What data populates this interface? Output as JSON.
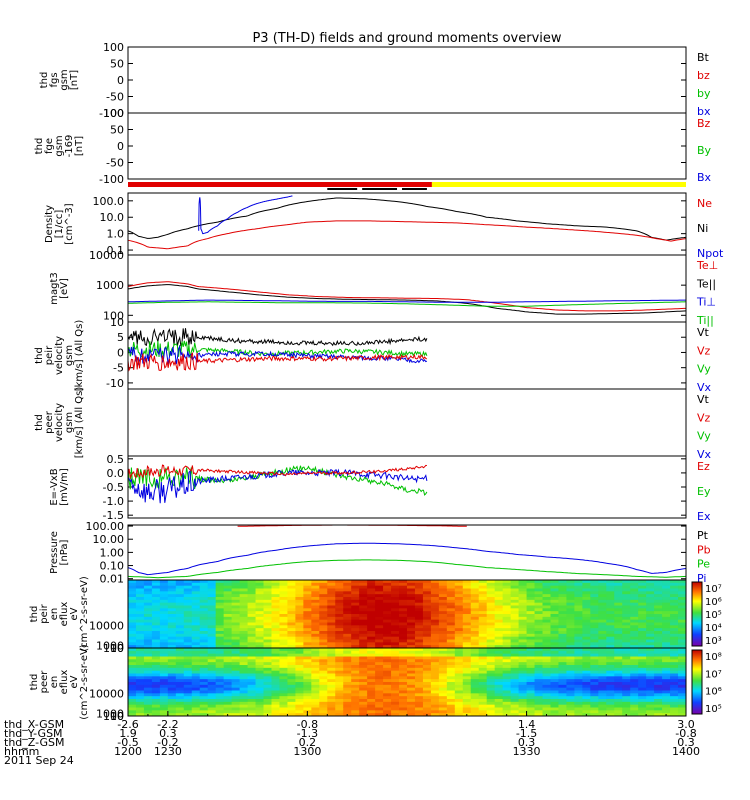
{
  "title": "P3 (TH-D) fields and ground moments overview",
  "chart_data": [
    {
      "type": "line",
      "id": "p1",
      "ylabels": [
        "thd",
        "fgs",
        "gsm",
        "[nT]"
      ],
      "ylim": [
        -100,
        100
      ],
      "yticks": [
        "100",
        "50",
        "0",
        "-50",
        "-100"
      ],
      "legend": [
        {
          "label": "Bt",
          "color": "#000000"
        },
        {
          "label": "bz",
          "color": "#e00000"
        },
        {
          "label": "by",
          "color": "#00c000"
        },
        {
          "label": "bx",
          "color": "#0000e0"
        }
      ],
      "series": []
    },
    {
      "type": "line",
      "id": "p2",
      "ylabels": [
        "thd",
        "fge",
        "gsm",
        "-169",
        "[nT]"
      ],
      "ylim": [
        -100,
        100
      ],
      "yticks": [
        "100",
        "50",
        "0",
        "-50",
        "-100"
      ],
      "legend": [
        {
          "label": "Bz",
          "color": "#e00000"
        },
        {
          "label": "By",
          "color": "#00c000"
        },
        {
          "label": "Bx",
          "color": "#0000e0"
        }
      ],
      "series": []
    },
    {
      "type": "bar",
      "id": "mode",
      "segments": [
        {
          "x0": -2.6,
          "x1": 0.45,
          "color": "#e00000"
        },
        {
          "x0": 0.45,
          "x1": 3.0,
          "color": "#ffff00"
        }
      ],
      "ticks": [
        {
          "x0": -0.6,
          "x1": -0.3
        },
        {
          "x0": -0.25,
          "x1": 0.1
        },
        {
          "x0": 0.15,
          "x1": 0.4
        }
      ]
    },
    {
      "type": "line",
      "id": "p3",
      "scale": "log",
      "ylabels": [
        "Density",
        "[1/cc]",
        "[cm^-3]"
      ],
      "ylim": [
        0.05,
        300
      ],
      "yticks": [
        "100.0",
        "10.0",
        "1.0",
        "0.1"
      ],
      "yticksv": [
        100,
        10,
        1,
        0.1
      ],
      "legend": [
        {
          "label": "Ne",
          "color": "#e00000"
        },
        {
          "label": "Ni",
          "color": "#000000"
        },
        {
          "label": "Npot",
          "color": "#0000e0"
        }
      ],
      "series": [
        {
          "name": "Ni",
          "color": "#000000",
          "x": [
            -2.6,
            -2.5,
            -2.4,
            -2.3,
            -2.2,
            -2.0,
            -1.7,
            -1.4,
            -1.1,
            -0.8,
            -0.5,
            -0.2,
            0.1,
            0.4,
            0.7,
            1.0,
            1.3,
            1.6,
            1.9,
            2.2,
            2.5,
            2.65,
            2.8,
            3.0
          ],
          "y": [
            1.5,
            0.7,
            0.5,
            0.6,
            0.9,
            2,
            5,
            12,
            35,
            90,
            150,
            130,
            90,
            45,
            22,
            10,
            6,
            4,
            3,
            2.5,
            1.5,
            0.6,
            0.4,
            0.6
          ]
        },
        {
          "name": "Ne",
          "color": "#e00000",
          "x": [
            -2.6,
            -2.4,
            -2.2,
            -2.0,
            -1.9,
            -1.8,
            -1.6,
            -1.3,
            -1.0,
            -0.8,
            -0.5,
            -0.2,
            0.1,
            0.4,
            0.7,
            1.0,
            1.4,
            1.8,
            2.2,
            2.5,
            2.7,
            2.85,
            3.0
          ],
          "y": [
            0.4,
            0.15,
            0.12,
            0.18,
            0.35,
            0.5,
            1.0,
            2.0,
            3.5,
            5,
            6,
            6,
            5.5,
            5,
            4.5,
            3.5,
            2.5,
            1.8,
            1.2,
            0.8,
            0.5,
            0.35,
            0.5
          ]
        },
        {
          "name": "Npot",
          "color": "#0000e0",
          "x": [
            -1.89,
            -1.88,
            -1.87,
            -1.85,
            -1.8,
            -1.7,
            -1.6,
            -1.5,
            -1.4,
            -1.3,
            -1.2,
            -1.1,
            -1.0,
            -0.95
          ],
          "y": [
            1.5,
            180,
            2,
            1.0,
            1.2,
            3,
            8,
            20,
            40,
            70,
            100,
            130,
            170,
            200
          ]
        }
      ]
    },
    {
      "type": "line",
      "id": "p4",
      "scale": "log",
      "ylabels": [
        "magt3",
        "[eV]"
      ],
      "ylim": [
        60,
        10000
      ],
      "yticks": [
        "10000",
        "1000",
        "100"
      ],
      "yticksv": [
        10000,
        1000,
        100
      ],
      "legend": [
        {
          "label": "Te⊥",
          "color": "#e00000"
        },
        {
          "label": "Te||",
          "color": "#000000"
        },
        {
          "label": "Ti⊥",
          "color": "#0000e0"
        },
        {
          "label": "Ti||",
          "color": "#00c000"
        }
      ],
      "series": [
        {
          "name": "Te⊥",
          "color": "#e00000",
          "x": [
            -2.6,
            -2.4,
            -2.2,
            -2.0,
            -1.9,
            -1.6,
            -1.3,
            -1.0,
            -0.7,
            -0.4,
            -0.1,
            0.2,
            0.5,
            0.8,
            1.1,
            1.4,
            1.7,
            2.0,
            2.3,
            2.6,
            3.0
          ],
          "y": [
            900,
            1200,
            1300,
            1100,
            900,
            750,
            600,
            480,
            420,
            390,
            380,
            370,
            360,
            330,
            250,
            180,
            150,
            140,
            140,
            150,
            170
          ]
        },
        {
          "name": "Te||",
          "color": "#000000",
          "x": [
            -2.6,
            -2.4,
            -2.2,
            -2.0,
            -1.9,
            -1.6,
            -1.3,
            -1.0,
            -0.7,
            -0.4,
            -0.1,
            0.2,
            0.5,
            0.8,
            1.1,
            1.4,
            1.7,
            2.0,
            2.3,
            2.6,
            3.0
          ],
          "y": [
            750,
            950,
            1050,
            900,
            750,
            600,
            480,
            400,
            360,
            340,
            330,
            320,
            300,
            250,
            170,
            130,
            110,
            110,
            115,
            120,
            140
          ]
        },
        {
          "name": "Ti⊥",
          "color": "#0000e0",
          "x": [
            -2.6,
            -2.2,
            -1.8,
            -1.4,
            -1.0,
            -0.6,
            -0.2,
            0.2,
            0.6,
            1.0,
            1.4,
            1.8,
            2.2,
            2.6,
            3.0
          ],
          "y": [
            280,
            300,
            320,
            310,
            300,
            290,
            290,
            280,
            270,
            270,
            280,
            290,
            300,
            310,
            320
          ]
        },
        {
          "name": "Ti||",
          "color": "#00c000",
          "x": [
            -2.6,
            -2.2,
            -1.8,
            -1.4,
            -1.0,
            -0.6,
            -0.2,
            0.2,
            0.6,
            1.0,
            1.4,
            1.8,
            2.2,
            2.6,
            3.0
          ],
          "y": [
            250,
            270,
            280,
            270,
            260,
            260,
            255,
            240,
            220,
            200,
            200,
            220,
            240,
            260,
            280
          ]
        }
      ]
    },
    {
      "type": "line",
      "id": "p5",
      "ylabels": [
        "thd",
        "peir",
        "velocity",
        "gsm",
        "[km/s] (All Qs)"
      ],
      "ylim": [
        -12,
        10
      ],
      "yticks": [
        "10",
        "5",
        "0",
        "-5",
        "-10"
      ],
      "yticksv": [
        10,
        5,
        0,
        -5,
        -10
      ],
      "legend": [
        {
          "label": "Vt",
          "color": "#000000"
        },
        {
          "label": "Vz",
          "color": "#e00000"
        },
        {
          "label": "Vy",
          "color": "#00c000"
        },
        {
          "label": "Vx",
          "color": "#0000e0"
        }
      ],
      "series": [
        {
          "name": "Vt",
          "color": "#000000",
          "noise": 3,
          "nend": -1.9,
          "x": [
            -2.6,
            -1.9,
            -1.6,
            -1.2,
            -0.8,
            -0.4,
            0.0,
            0.2,
            0.4
          ],
          "y": [
            5,
            5,
            4,
            3.5,
            3,
            3,
            3.5,
            4,
            4.5
          ]
        },
        {
          "name": "Vy",
          "color": "#00c000",
          "noise": 3,
          "nend": -1.9,
          "x": [
            -2.6,
            -1.9,
            -1.6,
            -1.2,
            -0.8,
            -0.4,
            0.0,
            0.2,
            0.4
          ],
          "y": [
            1,
            1,
            0.5,
            -0.5,
            0,
            0.5,
            0,
            -0.5,
            -0.5
          ]
        },
        {
          "name": "Vx",
          "color": "#0000e0",
          "noise": 3,
          "nend": -1.9,
          "x": [
            -2.6,
            -1.9,
            -1.6,
            -1.2,
            -0.8,
            -0.4,
            0.0,
            0.2,
            0.4
          ],
          "y": [
            -1,
            -1,
            -0.5,
            -0.5,
            -1,
            -1.5,
            -2,
            -2.5,
            -3
          ]
        },
        {
          "name": "Vz",
          "color": "#e00000",
          "noise": 3,
          "nend": -1.9,
          "x": [
            -2.6,
            -1.9,
            -1.6,
            -1.2,
            -0.8,
            -0.4,
            0.0,
            0.2,
            0.4
          ],
          "y": [
            -3,
            -3,
            -2.5,
            -2,
            -2,
            -2,
            -1.5,
            -1.5,
            -1.5
          ]
        }
      ]
    },
    {
      "type": "line",
      "id": "p6",
      "ylabels": [
        "thd",
        "peer",
        "velocity",
        "gsm",
        "[km/s] (All Qs)"
      ],
      "ylim": [
        -10,
        10
      ],
      "yticks": [],
      "legend": [
        {
          "label": "Vt",
          "color": "#000000"
        },
        {
          "label": "Vz",
          "color": "#e00000"
        },
        {
          "label": "Vy",
          "color": "#00c000"
        },
        {
          "label": "Vx",
          "color": "#0000e0"
        }
      ],
      "series": []
    },
    {
      "type": "line",
      "id": "p7",
      "ylabels": [
        "E=-VxB",
        "[mV/m]"
      ],
      "ylim": [
        -1.6,
        0.6
      ],
      "yticks": [
        "0.5",
        "0.0",
        "-0.5",
        "-1.0",
        "-1.5"
      ],
      "yticksv": [
        0.5,
        0,
        -0.5,
        -1.0,
        -1.5
      ],
      "legend": [
        {
          "label": "Ez",
          "color": "#e00000"
        },
        {
          "label": "Ey",
          "color": "#00c000"
        },
        {
          "label": "Ex",
          "color": "#0000e0"
        }
      ],
      "series": [
        {
          "name": "Ey",
          "color": "#00c000",
          "noise": 0.4,
          "nend": -1.9,
          "x": [
            -2.6,
            -1.9,
            -1.6,
            -1.3,
            -1.0,
            -0.8,
            -0.6,
            -0.3,
            0.0,
            0.2,
            0.4
          ],
          "y": [
            -0.2,
            -0.2,
            -0.3,
            -0.1,
            0.1,
            0.2,
            0.0,
            -0.2,
            -0.4,
            -0.6,
            -0.7
          ]
        },
        {
          "name": "Ex",
          "color": "#0000e0",
          "noise": 0.45,
          "nend": -1.9,
          "x": [
            -2.6,
            -2.4,
            -2.2,
            -1.9,
            -1.6,
            -1.3,
            -1.0,
            -0.7,
            -0.4,
            0.0,
            0.2,
            0.4
          ],
          "y": [
            -0.3,
            -0.7,
            -0.6,
            -0.3,
            -0.2,
            -0.1,
            0.0,
            0.0,
            0.0,
            -0.1,
            -0.2,
            -0.2
          ]
        },
        {
          "name": "Ez",
          "color": "#e00000",
          "noise": 0.2,
          "nend": -1.9,
          "x": [
            -2.6,
            -2.2,
            -1.9,
            -1.6,
            -1.3,
            -1.0,
            -0.7,
            -0.4,
            -0.1,
            0.2,
            0.4
          ],
          "y": [
            0.0,
            0.1,
            0.1,
            0.05,
            0.0,
            -0.05,
            0.0,
            0.0,
            0.05,
            0.15,
            0.25
          ]
        }
      ]
    },
    {
      "type": "line",
      "id": "p8",
      "scale": "log",
      "ylabels": [
        "Pressure",
        "[nPa]"
      ],
      "ylim": [
        0.008,
        120
      ],
      "yticks": [
        "100.00",
        "10.00",
        "1.00",
        "0.10",
        "0.01"
      ],
      "yticksv": [
        100,
        10,
        1,
        0.1,
        0.01
      ],
      "legend": [
        {
          "label": "Pt",
          "color": "#000000"
        },
        {
          "label": "Pb",
          "color": "#e00000"
        },
        {
          "label": "Pe",
          "color": "#00c000"
        },
        {
          "label": "Pi",
          "color": "#0000e0"
        }
      ],
      "series": [
        {
          "name": "Pb",
          "color": "#e00000",
          "x": [
            -1.5,
            -1.0,
            -0.5,
            0.0,
            0.5,
            0.8
          ],
          "y": [
            95,
            110,
            120,
            115,
            105,
            95
          ]
        },
        {
          "name": "Pi",
          "color": "#0000e0",
          "x": [
            -2.6,
            -2.5,
            -2.4,
            -2.2,
            -2.0,
            -1.7,
            -1.4,
            -1.1,
            -0.8,
            -0.5,
            -0.2,
            0.1,
            0.4,
            0.7,
            1.0,
            1.3,
            1.6,
            1.9,
            2.2,
            2.5,
            2.65,
            2.8,
            3.0
          ],
          "y": [
            0.07,
            0.03,
            0.02,
            0.03,
            0.06,
            0.2,
            0.6,
            1.5,
            3,
            4.5,
            5,
            4.5,
            3.5,
            2.2,
            1.2,
            0.7,
            0.45,
            0.3,
            0.15,
            0.05,
            0.025,
            0.03,
            0.06
          ]
        },
        {
          "name": "Pe",
          "color": "#00c000",
          "x": [
            -2.6,
            -2.3,
            -2.0,
            -1.7,
            -1.4,
            -1.1,
            -0.8,
            -0.5,
            -0.2,
            0.1,
            0.4,
            0.7,
            1.0,
            1.3,
            1.6,
            1.9,
            2.2,
            2.5,
            2.8,
            3.0
          ],
          "y": [
            0.015,
            0.012,
            0.015,
            0.03,
            0.06,
            0.12,
            0.2,
            0.25,
            0.27,
            0.25,
            0.2,
            0.12,
            0.07,
            0.05,
            0.035,
            0.025,
            0.02,
            0.015,
            0.013,
            0.015
          ]
        }
      ]
    },
    {
      "type": "heatmap",
      "id": "p9",
      "ylabels": [
        "thd",
        "peir",
        "en",
        "eflux",
        "eV",
        "(cm^2-s-sr-eV)"
      ],
      "yticks": [
        "10000",
        "1000",
        "100",
        "10"
      ],
      "yticksv": [
        10000,
        1000,
        100,
        10
      ],
      "ylim": [
        5,
        30000
      ],
      "colorbar": {
        "labels": [
          "10⁷",
          "10⁶",
          "10⁵",
          "10⁴",
          "10³"
        ],
        "vmin": 3,
        "vmax": 7.5
      }
    },
    {
      "type": "heatmap",
      "id": "p10",
      "ylabels": [
        "thd",
        "peer",
        "en",
        "eflux",
        "eV",
        "(cm^2-s-sr-eV)"
      ],
      "yticks": [
        "10000",
        "1000",
        "100",
        "10"
      ],
      "yticksv": [
        10000,
        1000,
        100,
        10
      ],
      "ylim": [
        5,
        30000
      ],
      "colorbar": {
        "labels": [
          "10⁸",
          "10⁷",
          "10⁶",
          "10⁵"
        ],
        "vmin": 4.7,
        "vmax": 8.3
      }
    }
  ],
  "xaxis": {
    "xlim": [
      -2.6,
      3.0
    ],
    "ticks": [
      -2.6,
      -2.2,
      -0.8,
      1.4,
      3.0
    ],
    "rows": [
      {
        "label": "thd_X-GSM",
        "values": [
          "-2.6",
          "-2.2",
          "-0.8",
          "1.4",
          "3.0"
        ]
      },
      {
        "label": "thd_Y-GSM",
        "values": [
          "1.9",
          "0.3",
          "-1.3",
          "-1.5",
          "-0.8"
        ]
      },
      {
        "label": "thd_Z-GSM",
        "values": [
          "-0.5",
          "-0.2",
          "0.2",
          "0.3",
          "0.3"
        ]
      },
      {
        "label": "hhmm",
        "values": [
          "1200",
          "1230",
          "1300",
          "1330",
          "1400"
        ]
      }
    ],
    "date": "2011 Sep 24"
  }
}
